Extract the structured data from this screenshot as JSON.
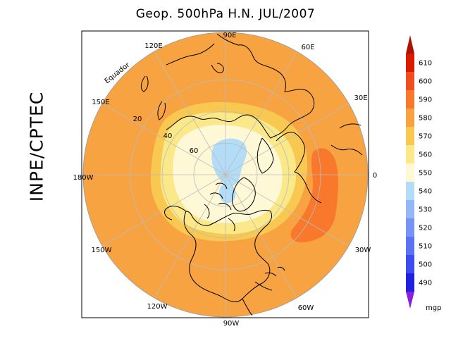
{
  "title": "Geop. 500hPa H.N. JUL/2007",
  "side_label": "INPE/CPTEC",
  "longitude_labels": {
    "l90e": "90E",
    "l60e": "60E",
    "l30e": "30E",
    "l0": "0",
    "l30w": "30W",
    "l60w": "60W",
    "l90w": "90W",
    "l120w": "120W",
    "l150w": "150W",
    "l180w": "180W",
    "l150e": "150E",
    "l120e": "120E"
  },
  "latitude_labels": {
    "lat20": "20",
    "lat40": "40",
    "lat60": "60",
    "equator": "Equador"
  },
  "colorbar": {
    "unit": "mgp",
    "levels": [
      {
        "label": "610",
        "color": "#d81c00"
      },
      {
        "label": "600",
        "color": "#f04e1e"
      },
      {
        "label": "590",
        "color": "#f8782c"
      },
      {
        "label": "580",
        "color": "#f7a342"
      },
      {
        "label": "570",
        "color": "#f8c850"
      },
      {
        "label": "560",
        "color": "#fbe889"
      },
      {
        "label": "550",
        "color": "#fef8d6"
      },
      {
        "label": "540",
        "color": "#b3dcf7"
      },
      {
        "label": "530",
        "color": "#94b7f6"
      },
      {
        "label": "520",
        "color": "#7893f5"
      },
      {
        "label": "510",
        "color": "#5b72f3"
      },
      {
        "label": "500",
        "color": "#3c4cf1"
      },
      {
        "label": "490",
        "color": "#2020e0"
      }
    ],
    "top_color": "#b01000",
    "bottom_color": "#8a1ee0"
  }
}
